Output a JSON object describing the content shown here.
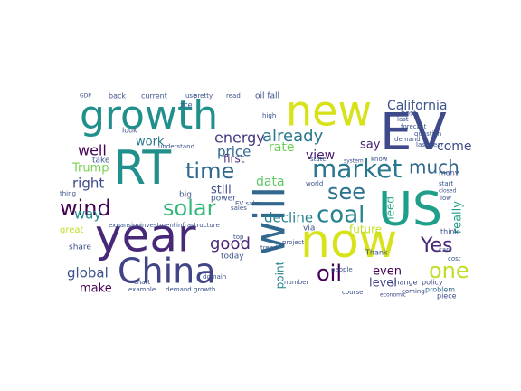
{
  "word_cloud": {
    "words": [
      {
        "text": "growth",
        "color": "#21908c"
      },
      {
        "text": "new",
        "color": "#d8e219"
      },
      {
        "text": "EV",
        "color": "#3e4a89"
      },
      {
        "text": "RT",
        "color": "#21908c"
      },
      {
        "text": "year",
        "color": "#482878"
      },
      {
        "text": "now",
        "color": "#d8e219"
      },
      {
        "text": "US",
        "color": "#1f9e89"
      },
      {
        "text": "will",
        "color": "#31688e"
      },
      {
        "text": "China",
        "color": "#414487"
      },
      {
        "text": "wind",
        "color": "#440154"
      },
      {
        "text": "solar",
        "color": "#35b779"
      },
      {
        "text": "market",
        "color": "#2a788e"
      },
      {
        "text": "coal",
        "color": "#26828e"
      },
      {
        "text": "time",
        "color": "#31688e"
      },
      {
        "text": "see",
        "color": "#2c728e"
      },
      {
        "text": "already",
        "color": "#2a788e"
      },
      {
        "text": "energy",
        "color": "#453781"
      },
      {
        "text": "much",
        "color": "#31688e"
      },
      {
        "text": "Yes",
        "color": "#482878"
      },
      {
        "text": "oil",
        "color": "#440154"
      },
      {
        "text": "one",
        "color": "#bddf26"
      },
      {
        "text": "good",
        "color": "#482878"
      },
      {
        "text": "global",
        "color": "#3b528b"
      },
      {
        "text": "California",
        "color": "#3b528b"
      },
      {
        "text": "well",
        "color": "#440154"
      },
      {
        "text": "price",
        "color": "#31688e"
      },
      {
        "text": "work",
        "color": "#2a788e"
      },
      {
        "text": "decline",
        "color": "#26828e"
      },
      {
        "text": "data",
        "color": "#5ec962"
      },
      {
        "text": "rate",
        "color": "#6ece58"
      },
      {
        "text": "right",
        "color": "#3e4a89"
      },
      {
        "text": "Trump",
        "color": "#7ad151"
      },
      {
        "text": "view",
        "color": "#481f70"
      },
      {
        "text": "say",
        "color": "#482475"
      },
      {
        "text": "come",
        "color": "#3e4a89"
      },
      {
        "text": "still",
        "color": "#3e4a89"
      },
      {
        "text": "first",
        "color": "#482878"
      },
      {
        "text": "way",
        "color": "#21908c"
      },
      {
        "text": "make",
        "color": "#440154"
      },
      {
        "text": "really",
        "color": "#1fa188"
      },
      {
        "text": "future",
        "color": "#c2df23"
      },
      {
        "text": "even",
        "color": "#440154"
      },
      {
        "text": "level",
        "color": "#414487"
      },
      {
        "text": "point",
        "color": "#26828e"
      },
      {
        "text": "need",
        "color": "#22a884"
      },
      {
        "text": "problem",
        "color": "#31688e"
      },
      {
        "text": "think",
        "color": "#3b528b"
      },
      {
        "text": "question",
        "color": "#3b528b"
      },
      {
        "text": "know",
        "color": "#3b528b"
      },
      {
        "text": "forecast",
        "color": "#3b528b"
      },
      {
        "text": "demand",
        "color": "#3b528b"
      },
      {
        "text": "last",
        "color": "#3b528b"
      },
      {
        "text": "cost",
        "color": "#3b528b"
      },
      {
        "text": "policy",
        "color": "#3e4a89"
      },
      {
        "text": "change",
        "color": "#3e4a89"
      },
      {
        "text": "coming",
        "color": "#3e4a89"
      },
      {
        "text": "piece",
        "color": "#3e4a89"
      },
      {
        "text": "economic",
        "color": "#3e4a89"
      },
      {
        "text": "great",
        "color": "#bddf26"
      },
      {
        "text": "share",
        "color": "#3b528b"
      },
      {
        "text": "infrastructure",
        "color": "#3b528b"
      },
      {
        "text": "investment",
        "color": "#3b528b"
      },
      {
        "text": "expansion",
        "color": "#3b528b"
      },
      {
        "text": "demand growth",
        "color": "#3b528b"
      },
      {
        "text": "example",
        "color": "#3b528b"
      },
      {
        "text": "chart",
        "color": "#3b528b"
      },
      {
        "text": "big",
        "color": "#3b528b"
      },
      {
        "text": "power",
        "color": "#3b528b"
      },
      {
        "text": "today",
        "color": "#3b528b"
      },
      {
        "text": "back",
        "color": "#3b528b"
      },
      {
        "text": "current",
        "color": "#3b528b"
      },
      {
        "text": "use",
        "color": "#3b528b"
      },
      {
        "text": "pretty",
        "color": "#3b528b"
      },
      {
        "text": "read",
        "color": "#3b528b"
      },
      {
        "text": "oil fall",
        "color": "#3b528b"
      },
      {
        "text": "take",
        "color": "#3b528b"
      },
      {
        "text": "look",
        "color": "#3b528b"
      },
      {
        "text": "understand",
        "color": "#3b528b"
      },
      {
        "text": "thing",
        "color": "#3b528b"
      },
      {
        "text": "GDP",
        "color": "#3b528b"
      },
      {
        "text": "via",
        "color": "#3b528b"
      },
      {
        "text": "world",
        "color": "#3b528b"
      },
      {
        "text": "domain",
        "color": "#3b528b"
      },
      {
        "text": "sales",
        "color": "#3b528b"
      },
      {
        "text": "number",
        "color": "#3b528b"
      },
      {
        "text": "project",
        "color": "#3b528b"
      },
      {
        "text": "people",
        "color": "#3b528b"
      },
      {
        "text": "Thank",
        "color": "#3b528b"
      },
      {
        "text": "course",
        "color": "#3b528b"
      },
      {
        "text": "system",
        "color": "#3b528b"
      },
      {
        "text": "state",
        "color": "#3b528b"
      },
      {
        "text": "trend",
        "color": "#3b528b"
      },
      {
        "text": "many",
        "color": "#3b528b"
      },
      {
        "text": "start",
        "color": "#3b528b"
      },
      {
        "text": "closed",
        "color": "#3b528b"
      },
      {
        "text": "best",
        "color": "#3b528b"
      },
      {
        "text": "last year",
        "color": "#3b528b"
      },
      {
        "text": "cars",
        "color": "#3b528b"
      },
      {
        "text": "low",
        "color": "#3b528b"
      },
      {
        "text": "top",
        "color": "#3b528b"
      },
      {
        "text": "high",
        "color": "#3b528b"
      },
      {
        "text": "zce",
        "color": "#3b528b"
      },
      {
        "text": "EV sales",
        "color": "#3b528b"
      }
    ]
  }
}
